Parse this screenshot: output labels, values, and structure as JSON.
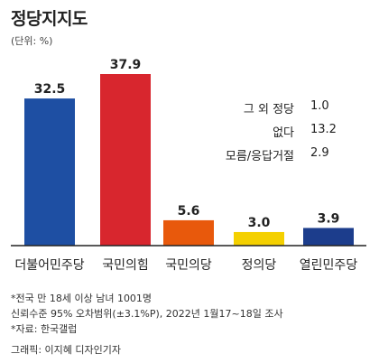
{
  "title": "정당지지도",
  "unit": "(단위: %)",
  "chart_data": {
    "type": "bar",
    "title": "정당지지도",
    "unit": "(단위: %)",
    "categories": [
      "더불어민주당",
      "국민의힘",
      "국민의당",
      "정의당",
      "열린민주당"
    ],
    "values": [
      32.5,
      37.9,
      5.6,
      3.0,
      3.9
    ],
    "value_labels": [
      "32.5",
      "37.9",
      "5.6",
      "3.0",
      "3.9"
    ],
    "colors": [
      "#1e4fa3",
      "#d8262e",
      "#e8590c",
      "#f4d000",
      "#1c3d8c"
    ],
    "ylim": [
      0,
      37.9
    ],
    "grid": false,
    "legend": "none"
  },
  "side_table": [
    {
      "label": "그 외 정당",
      "value": "1.0"
    },
    {
      "label": "없다",
      "value": "13.2"
    },
    {
      "label": "모름/응답거절",
      "value": "2.9"
    }
  ],
  "footnotes": [
    "*전국 만 18세 이상 남녀 1001명",
    "신뢰수준 95% 오차범위(±3.1%P), 2022년 1월17~18일 조사",
    "*자료: 한국갤럽"
  ],
  "credit": "그래픽: 이지혜 디자인기자"
}
